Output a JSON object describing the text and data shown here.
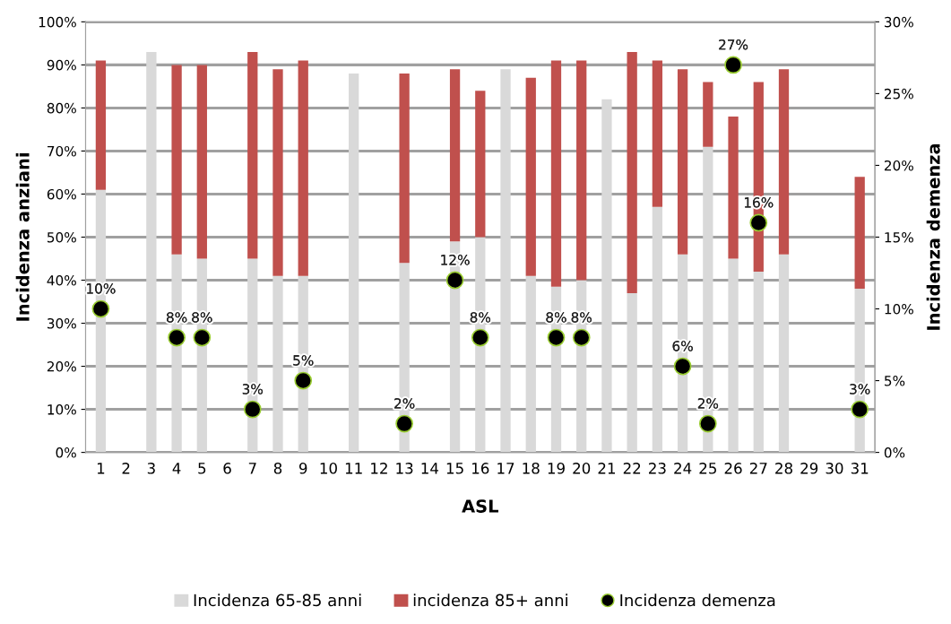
{
  "chart_data": {
    "type": "bar",
    "stacked": true,
    "xlabel": "ASL",
    "ylabel": "Incidenza anziani",
    "y2label": "Incidenza demenza",
    "categories": [
      "1",
      "2",
      "3",
      "4",
      "5",
      "6",
      "7",
      "8",
      "9",
      "10",
      "11",
      "12",
      "13",
      "14",
      "15",
      "16",
      "17",
      "18",
      "19",
      "20",
      "21",
      "22",
      "23",
      "24",
      "25",
      "26",
      "27",
      "28",
      "29",
      "30",
      "31"
    ],
    "series": [
      {
        "name": "Incidenza 65-85 anni",
        "color": "#d9d9d9",
        "values": [
          61,
          null,
          93,
          46,
          45,
          null,
          45,
          41,
          41,
          null,
          88,
          null,
          44,
          null,
          49,
          50,
          89,
          41,
          38.5,
          40,
          82,
          37,
          57,
          46,
          71,
          45,
          42,
          46,
          null,
          null,
          38
        ]
      },
      {
        "name": "incidenza 85+ anni",
        "color": "#c0504d",
        "values": [
          30,
          null,
          null,
          44,
          45,
          null,
          48,
          48,
          50,
          null,
          null,
          null,
          44,
          null,
          40,
          34,
          null,
          46,
          52.5,
          51,
          null,
          56,
          34,
          43,
          15,
          33,
          44,
          43,
          null,
          null,
          26
        ]
      },
      {
        "name": "Incidenza demenza",
        "color": "#000000",
        "type": "scatter",
        "axis": "y2",
        "marker": "circle",
        "values": [
          10,
          null,
          null,
          8,
          8,
          null,
          3,
          null,
          5,
          null,
          null,
          null,
          2,
          null,
          12,
          8,
          null,
          null,
          8,
          8,
          null,
          null,
          null,
          6,
          2,
          27,
          16,
          null,
          null,
          null,
          3
        ],
        "value_labels": [
          "10%",
          null,
          null,
          "8%",
          "8%",
          null,
          "3%",
          null,
          "5%",
          null,
          null,
          null,
          "2%",
          null,
          "12%",
          "8%",
          null,
          null,
          "8%",
          "8%",
          null,
          null,
          null,
          "6%",
          "2%",
          "27%",
          "16%",
          null,
          null,
          null,
          "3%"
        ]
      }
    ],
    "ylim": [
      0,
      100
    ],
    "yticks": [
      {
        "value": 0,
        "label": "0%"
      },
      {
        "value": 10,
        "label": "10%"
      },
      {
        "value": 20,
        "label": "20%"
      },
      {
        "value": 30,
        "label": "30%"
      },
      {
        "value": 40,
        "label": "40%"
      },
      {
        "value": 50,
        "label": "50%"
      },
      {
        "value": 60,
        "label": "60%"
      },
      {
        "value": 70,
        "label": "70%"
      },
      {
        "value": 80,
        "label": "80%"
      },
      {
        "value": 90,
        "label": "90%"
      },
      {
        "value": 100,
        "label": "100%"
      }
    ],
    "y2lim": [
      0,
      30
    ],
    "y2ticks": [
      {
        "value": 0,
        "label": "0%"
      },
      {
        "value": 5,
        "label": "5%"
      },
      {
        "value": 10,
        "label": "10%"
      },
      {
        "value": 15,
        "label": "15%"
      },
      {
        "value": 20,
        "label": "20%"
      },
      {
        "value": 25,
        "label": "25%"
      },
      {
        "value": 30,
        "label": "30%"
      }
    ],
    "grid": "y",
    "legend": "bottom"
  }
}
